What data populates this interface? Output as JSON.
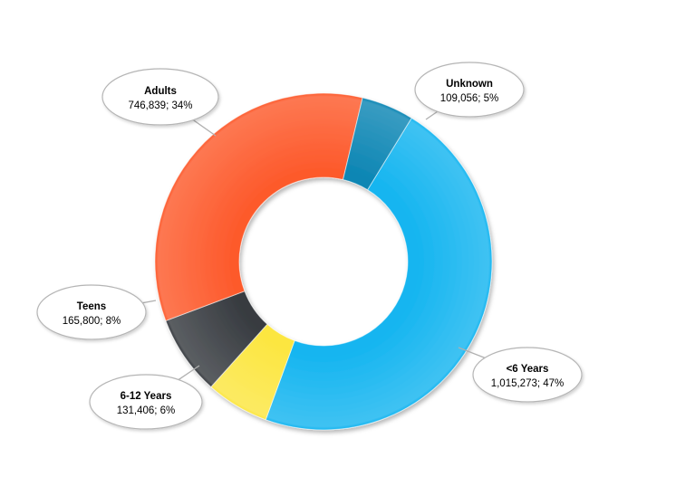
{
  "chart_data": {
    "type": "pie",
    "variant": "donut",
    "title": "",
    "slices": [
      {
        "label": "<6 Years",
        "value_text": "1,015,273; 47%",
        "value": 1015273,
        "percent": 47,
        "color": "#15B5F0"
      },
      {
        "label": "6-12 Years",
        "value_text": "131,406; 6%",
        "value": 131406,
        "percent": 6,
        "color": "#FCE640"
      },
      {
        "label": "Teens",
        "value_text": "165,800; 8%",
        "value": 165800,
        "percent": 8,
        "color": "#373B40"
      },
      {
        "label": "Adults",
        "value_text": "746,839; 34%",
        "value": 746839,
        "percent": 34,
        "color": "#FD5A2C"
      },
      {
        "label": "Unknown",
        "value_text": "109,056; 5%",
        "value": 109056,
        "percent": 5,
        "color": "#0D86B4"
      }
    ],
    "legend": "none"
  }
}
